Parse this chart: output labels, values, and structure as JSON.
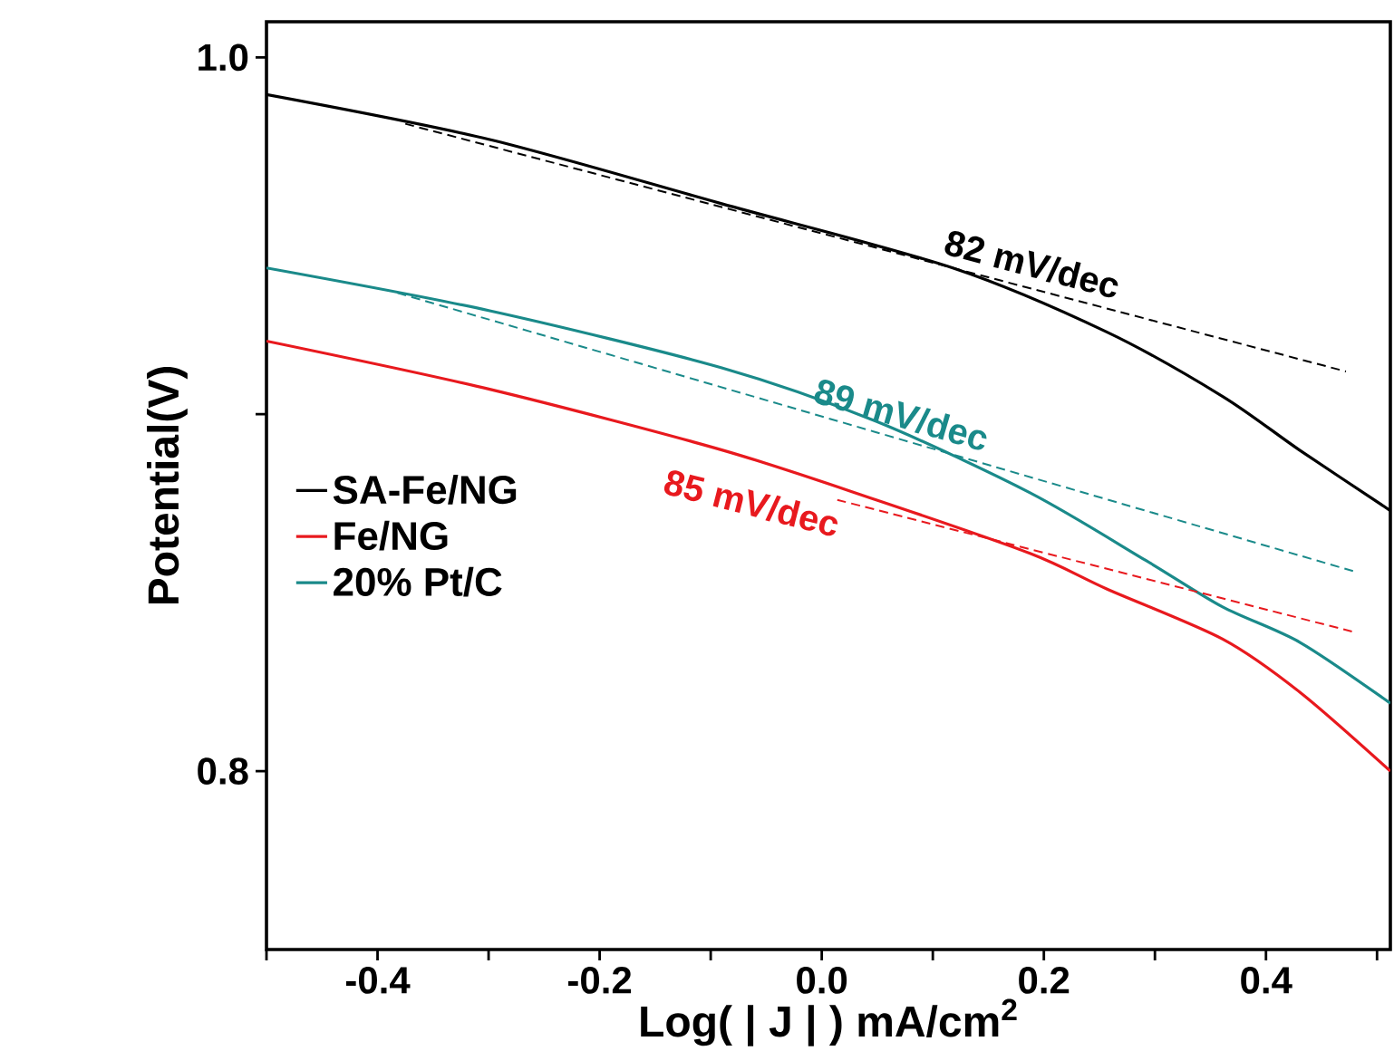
{
  "chart_data": {
    "type": "line",
    "xlabel": "Log( | J | ) mA/cm$^{2}$",
    "ylabel": "Potential(V)",
    "xlim": [
      -0.5,
      0.512
    ],
    "ylim": [
      0.75,
      1.01
    ],
    "xticks": [
      {
        "value": -0.5,
        "label": null
      },
      -0.4,
      {
        "value": -0.3,
        "label": null
      },
      -0.2,
      {
        "value": -0.1,
        "label": null
      },
      {
        "value": 0.0,
        "label": "0.0"
      },
      {
        "value": 0.1,
        "label": null
      },
      0.2,
      {
        "value": 0.3,
        "label": null
      },
      0.4,
      {
        "value": 0.5,
        "label": null
      }
    ],
    "yticks": [
      {
        "value": 0.8,
        "label": "0.8"
      },
      {
        "value": 0.9,
        "label": null
      },
      {
        "value": 1.0,
        "label": "1.0"
      }
    ],
    "grid": false,
    "legend": "left",
    "marker": "none",
    "line_style": "solid",
    "series": [
      {
        "name": "SA-Fe/NG",
        "color": "#000000",
        "x": [
          -0.5,
          -0.299,
          -0.09,
          0.118,
          0.257,
          0.361,
          0.43,
          0.512
        ],
        "values": [
          0.9896,
          0.977,
          0.959,
          0.941,
          0.923,
          0.905,
          0.89,
          0.873
        ]
      },
      {
        "name": "Fe/NG",
        "color": "#e8191e",
        "x": [
          -0.5,
          -0.299,
          -0.09,
          0.049,
          0.1875,
          0.257,
          0.361,
          0.431,
          0.512
        ],
        "values": [
          0.9205,
          0.907,
          0.89,
          0.876,
          0.861,
          0.851,
          0.837,
          0.822,
          0.8
        ]
      },
      {
        "name": "20% Pt/C",
        "color": "#1a8a8a",
        "x": [
          -0.5,
          -0.299,
          -0.09,
          0.049,
          0.1875,
          0.292,
          0.361,
          0.431,
          0.512
        ],
        "values": [
          0.941,
          0.929,
          0.913,
          0.898,
          0.878,
          0.859,
          0.846,
          0.836,
          0.819
        ]
      },
      {
        "color": "#000000",
        "line_style": "dashed",
        "x": [
          -0.375,
          0.472
        ],
        "values": [
          0.9814,
          0.912
        ]
      },
      {
        "color": "#1a8a8a",
        "line_style": "dashed",
        "x": [
          -0.382,
          0.479
        ],
        "values": [
          0.934,
          0.856
        ]
      },
      {
        "color": "#e8191e",
        "line_style": "dashed",
        "x": [
          0.014,
          0.479
        ],
        "values": [
          0.876,
          0.839
        ]
      }
    ],
    "annotations": [
      "82 mV/dec",
      "89 mV/dec",
      "85 mV/dec"
    ]
  }
}
